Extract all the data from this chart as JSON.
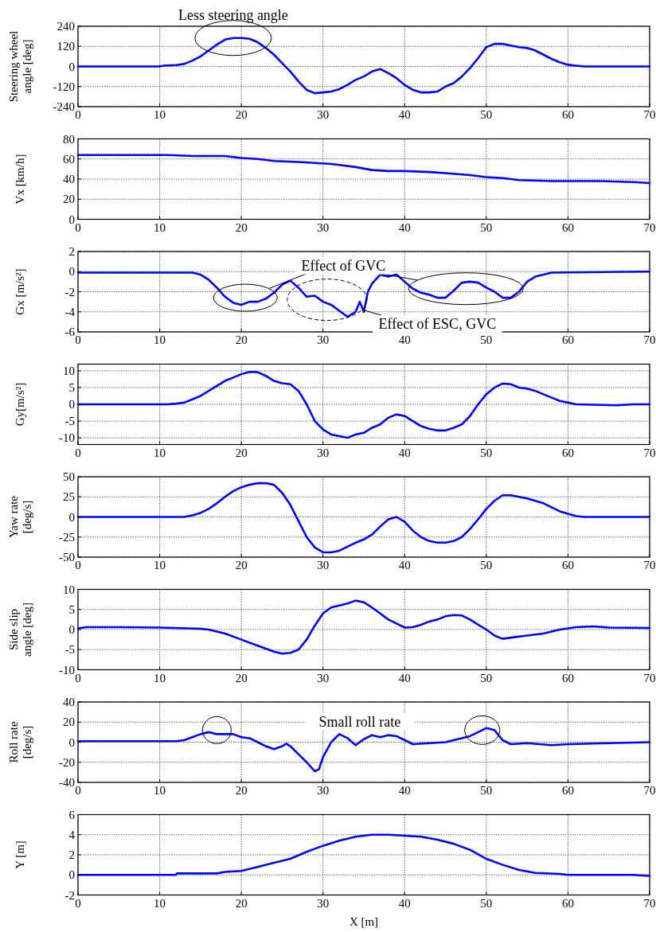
{
  "chart_data": [
    {
      "type": "line",
      "ylabel": "Steering wheel\nangle [deg]",
      "annotations": [
        "Less steering angle"
      ],
      "xlim": [
        0,
        70
      ],
      "xticks": [
        0,
        10,
        20,
        30,
        40,
        50,
        60,
        70
      ],
      "ylim": [
        -240,
        240
      ],
      "yticks": [
        -240,
        -120,
        0,
        120,
        240
      ],
      "grid": true,
      "marker": "none",
      "line_style": "solid",
      "series": [
        {
          "color": "#0000ff",
          "x": [
            0,
            10,
            10.5,
            12,
            13,
            14,
            15,
            16,
            17,
            18,
            19,
            20,
            21,
            22,
            23,
            24,
            25,
            26,
            27,
            28,
            29,
            30,
            31,
            32,
            33,
            34,
            35,
            36,
            37,
            38,
            39,
            40,
            41,
            42,
            43,
            44,
            45,
            46,
            47,
            48,
            49,
            50,
            51,
            52,
            53,
            54,
            55,
            56,
            57,
            58,
            59,
            60,
            61,
            62,
            70
          ],
          "values": [
            0,
            0,
            5,
            8,
            15,
            35,
            60,
            95,
            130,
            160,
            170,
            170,
            165,
            145,
            110,
            70,
            20,
            -30,
            -90,
            -140,
            -160,
            -155,
            -150,
            -135,
            -110,
            -80,
            -60,
            -30,
            -15,
            -40,
            -70,
            -110,
            -140,
            -155,
            -155,
            -150,
            -120,
            -100,
            -60,
            -10,
            50,
            115,
            135,
            135,
            125,
            115,
            110,
            95,
            70,
            45,
            25,
            10,
            5,
            0,
            0
          ]
        }
      ]
    },
    {
      "type": "line",
      "ylabel": "Vx [km/h]",
      "xlim": [
        0,
        70
      ],
      "xticks": [
        0,
        10,
        20,
        30,
        40,
        50,
        60,
        70
      ],
      "ylim": [
        0,
        80
      ],
      "yticks": [
        0,
        20,
        40,
        60,
        80
      ],
      "grid": true,
      "marker": "none",
      "line_style": "solid",
      "series": [
        {
          "color": "#0000ff",
          "x": [
            0,
            11,
            14,
            18,
            20,
            22,
            24,
            27,
            29,
            31,
            32,
            34,
            36,
            38,
            40,
            43,
            45,
            48,
            50,
            52,
            54,
            58,
            64,
            68,
            70
          ],
          "values": [
            64,
            64,
            63,
            63,
            61,
            60,
            58,
            57,
            56,
            55,
            54,
            52,
            49,
            48,
            48,
            47,
            46,
            44,
            42,
            41,
            39,
            38,
            38,
            37,
            36
          ]
        }
      ]
    },
    {
      "type": "line",
      "ylabel": "Gx [m/s²]",
      "annotations": [
        "Effect of GVC",
        "Effect of ESC, GVC"
      ],
      "xlim": [
        0,
        70
      ],
      "xticks": [
        0,
        10,
        20,
        30,
        40,
        50,
        60,
        70
      ],
      "ylim": [
        -6,
        2
      ],
      "yticks": [
        -6,
        -4,
        -2,
        0,
        2
      ],
      "grid": true,
      "marker": "none",
      "line_style": "solid",
      "series": [
        {
          "color": "#0000ff",
          "x": [
            0,
            14,
            15,
            16,
            17,
            18,
            19,
            20,
            21,
            22,
            23,
            24,
            25,
            26,
            27,
            28,
            29,
            30,
            31,
            32,
            33,
            34,
            34.5,
            35,
            35.5,
            36,
            37,
            38,
            39,
            40,
            41,
            42,
            43,
            44,
            45,
            46,
            47,
            48,
            49,
            50,
            51,
            52,
            53,
            54,
            55,
            56,
            58,
            70
          ],
          "values": [
            -0.1,
            -0.1,
            -0.3,
            -0.8,
            -1.6,
            -2.5,
            -3.1,
            -3.3,
            -3.0,
            -3.0,
            -2.7,
            -2.1,
            -1.3,
            -0.9,
            -1.6,
            -2.5,
            -2.4,
            -3.0,
            -3.3,
            -3.9,
            -4.5,
            -4.0,
            -3.0,
            -4.0,
            -2.0,
            -1.2,
            -0.3,
            -0.5,
            -0.3,
            -1.0,
            -1.7,
            -2.1,
            -2.3,
            -2.6,
            -2.6,
            -1.9,
            -1.1,
            -1.0,
            -1.1,
            -1.6,
            -2.0,
            -2.6,
            -2.6,
            -2.0,
            -1.0,
            -0.5,
            -0.1,
            0
          ]
        }
      ]
    },
    {
      "type": "line",
      "ylabel": "Gy[m/s²]",
      "xlim": [
        0,
        70
      ],
      "xticks": [
        0,
        10,
        20,
        30,
        40,
        50,
        60,
        70
      ],
      "ylim": [
        -12,
        12
      ],
      "yticks": [
        -10,
        -5,
        0,
        5,
        10
      ],
      "grid": true,
      "marker": "none",
      "line_style": "solid",
      "series": [
        {
          "color": "#0000ff",
          "x": [
            0,
            11,
            12,
            13,
            14,
            15,
            16,
            17,
            18,
            19,
            20,
            21,
            22,
            23,
            24,
            25,
            26,
            27,
            28,
            29,
            30,
            31,
            32,
            33,
            34,
            35,
            36,
            37,
            38,
            39,
            40,
            41,
            42,
            43,
            44,
            45,
            46,
            47,
            48,
            49,
            50,
            51,
            52,
            53,
            54,
            55,
            56,
            57,
            58,
            59,
            60,
            61,
            66,
            68,
            70
          ],
          "values": [
            0,
            0,
            0.2,
            0.5,
            1.5,
            2.5,
            4,
            5.5,
            7,
            8,
            9,
            9.7,
            9.6,
            8.5,
            7,
            6.3,
            6,
            4,
            0,
            -5,
            -7.5,
            -9,
            -9.5,
            -10,
            -9,
            -8.5,
            -7,
            -6,
            -4,
            -3,
            -3.5,
            -5,
            -6.5,
            -7.3,
            -7.8,
            -7.8,
            -7,
            -6,
            -3.5,
            0,
            3,
            5,
            6.2,
            6,
            5,
            4.7,
            4,
            3,
            2,
            1,
            0.5,
            0,
            -0.3,
            0,
            0
          ]
        }
      ]
    },
    {
      "type": "line",
      "ylabel": "Yaw rate\n[deg/s]",
      "xlim": [
        0,
        70
      ],
      "xticks": [
        0,
        10,
        20,
        30,
        40,
        50,
        60,
        70
      ],
      "ylim": [
        -50,
        50
      ],
      "yticks": [
        -50,
        -25,
        0,
        25,
        50
      ],
      "grid": true,
      "marker": "none",
      "line_style": "solid",
      "series": [
        {
          "color": "#0000ff",
          "x": [
            0,
            13,
            14,
            15,
            16,
            17,
            18,
            19,
            20,
            21,
            22,
            23,
            24,
            25,
            26,
            27,
            28,
            29,
            30,
            31,
            32,
            33,
            34,
            35,
            36,
            37,
            38,
            39,
            40,
            41,
            42,
            43,
            44,
            45,
            46,
            47,
            48,
            49,
            50,
            51,
            52,
            53,
            54,
            55,
            56,
            57,
            58,
            59,
            60,
            61,
            62,
            70
          ],
          "values": [
            0,
            0,
            2,
            5,
            10,
            17,
            25,
            32,
            37,
            40,
            42,
            42,
            40,
            30,
            15,
            -5,
            -25,
            -38,
            -44,
            -44,
            -42,
            -37,
            -32,
            -28,
            -22,
            -12,
            -3,
            0,
            -6,
            -17,
            -25,
            -30,
            -32,
            -32,
            -30,
            -25,
            -15,
            -3,
            10,
            20,
            27,
            27,
            25,
            23,
            20,
            17,
            12,
            7,
            4,
            1,
            0,
            0
          ]
        }
      ]
    },
    {
      "type": "line",
      "ylabel": "Side slip\nangle [deg]",
      "xlim": [
        0,
        70
      ],
      "xticks": [
        0,
        10,
        20,
        30,
        40,
        50,
        60,
        70
      ],
      "ylim": [
        -10,
        10
      ],
      "yticks": [
        -10,
        -5,
        0,
        5,
        10
      ],
      "grid": true,
      "marker": "none",
      "line_style": "solid",
      "series": [
        {
          "color": "#0000ff",
          "x": [
            0,
            1,
            5,
            10,
            15,
            16,
            18,
            20,
            22,
            24,
            25,
            26,
            27,
            28,
            29,
            30,
            31,
            32,
            33,
            34,
            35,
            36,
            37,
            38,
            39,
            40,
            41,
            42,
            43,
            44,
            45,
            46,
            47,
            48,
            49,
            50,
            51,
            52,
            53,
            55,
            57,
            58,
            59,
            60,
            61,
            63,
            65,
            70
          ],
          "values": [
            0.3,
            0.6,
            0.6,
            0.5,
            0.2,
            0,
            -1,
            -2.5,
            -4,
            -5.5,
            -6,
            -5.8,
            -5,
            -2.5,
            1,
            4,
            5.5,
            6,
            6.5,
            7.2,
            6.8,
            5.5,
            4,
            2.5,
            1.5,
            0.5,
            0.6,
            1.2,
            2,
            2.5,
            3.3,
            3.6,
            3.5,
            2.5,
            1.2,
            0,
            -1.5,
            -2.3,
            -2,
            -1.5,
            -1,
            -0.5,
            0,
            0.3,
            0.6,
            0.8,
            0.5,
            0.4
          ]
        }
      ]
    },
    {
      "type": "line",
      "ylabel": "Roll rate\n[deg/s]",
      "annotations": [
        "Small roll rate"
      ],
      "xlim": [
        0,
        70
      ],
      "xticks": [
        0,
        10,
        20,
        30,
        40,
        50,
        60,
        70
      ],
      "ylim": [
        -40,
        40
      ],
      "yticks": [
        -40,
        -20,
        0,
        20,
        40
      ],
      "grid": true,
      "marker": "none",
      "line_style": "solid",
      "series": [
        {
          "color": "#0000ff",
          "x": [
            0,
            12,
            13,
            14,
            15,
            16,
            17,
            18,
            19,
            20,
            21,
            22,
            23,
            24,
            25,
            25.5,
            26,
            27,
            28,
            29,
            29.5,
            30,
            31,
            32,
            33,
            34,
            35,
            36,
            37,
            38,
            39,
            40,
            41,
            43,
            45,
            46,
            48,
            49,
            50,
            51,
            52,
            53,
            55,
            58,
            60,
            65,
            70
          ],
          "values": [
            1,
            1,
            2,
            5,
            8,
            10,
            8,
            8,
            8,
            5,
            4,
            0,
            -4,
            -7,
            -4,
            -1.5,
            -4,
            -12,
            -20,
            -29,
            -27,
            -15,
            0,
            8,
            4,
            -3,
            3,
            7,
            5,
            7,
            6,
            2,
            -2,
            -1,
            0,
            2,
            6,
            10,
            14,
            12,
            2,
            -2,
            -1,
            -3,
            -2,
            -1,
            0
          ]
        }
      ]
    },
    {
      "type": "line",
      "ylabel": "Y [m]",
      "xlabel": "X [m]",
      "xlim": [
        0,
        70
      ],
      "xticks": [
        0,
        10,
        20,
        30,
        40,
        50,
        60,
        70
      ],
      "ylim": [
        -2,
        6
      ],
      "yticks": [
        -2,
        0,
        2,
        4,
        6
      ],
      "grid": true,
      "marker": "none",
      "line_style": "solid",
      "series": [
        {
          "color": "#0000ff",
          "x": [
            0,
            12,
            12.1,
            17,
            18,
            20,
            22,
            24,
            26,
            28,
            30,
            32,
            34,
            36,
            38,
            40,
            42,
            44,
            46,
            48,
            50,
            52,
            54,
            56,
            59,
            60,
            68,
            70
          ],
          "values": [
            0,
            0,
            0.15,
            0.15,
            0.3,
            0.4,
            0.8,
            1.2,
            1.6,
            2.3,
            2.9,
            3.4,
            3.8,
            4,
            4,
            3.9,
            3.8,
            3.5,
            3.1,
            2.5,
            1.6,
            1,
            0.5,
            0.2,
            0.1,
            0,
            0,
            -0.1
          ]
        }
      ]
    }
  ]
}
